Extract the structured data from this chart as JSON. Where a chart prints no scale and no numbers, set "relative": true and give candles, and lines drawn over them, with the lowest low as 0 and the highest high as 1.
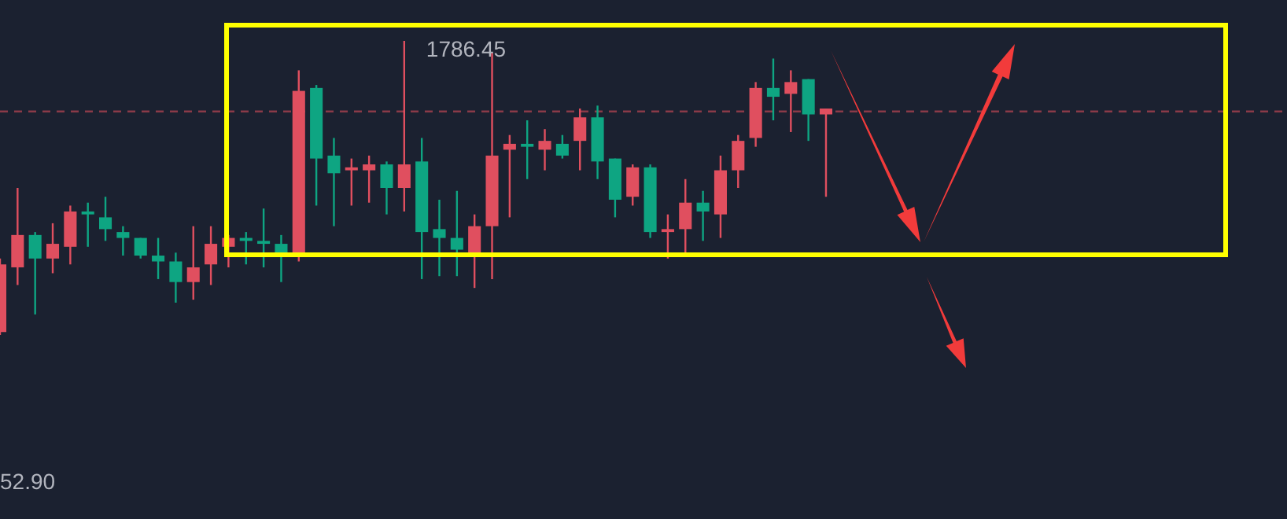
{
  "chart_data": {
    "type": "candlestick",
    "relative": true,
    "categories": [
      null,
      null,
      null,
      null,
      null,
      null,
      null,
      null,
      null,
      null,
      null,
      null,
      null,
      null,
      null,
      null,
      null,
      null,
      null,
      null,
      null,
      null,
      null,
      null,
      null,
      null,
      null,
      null,
      null,
      null,
      null,
      null,
      null,
      null,
      null,
      null,
      null,
      null,
      null,
      null,
      null,
      null,
      null,
      null,
      null,
      null,
      null,
      null,
      null,
      null,
      null,
      null,
      null,
      null,
      null,
      null,
      null,
      null,
      null,
      null,
      null,
      null,
      null,
      null,
      null,
      null,
      null,
      null,
      null,
      null,
      null,
      null,
      null,
      null
    ],
    "ohlc": [
      [
        0.24,
        0.26,
        0,
        0.01
      ],
      [
        0.34,
        0.5,
        0.17,
        0.23
      ],
      [
        0.26,
        0.35,
        0.07,
        0.34
      ],
      [
        0.31,
        0.38,
        0.21,
        0.26
      ],
      [
        0.42,
        0.44,
        0.24,
        0.3
      ],
      [
        0.41,
        0.45,
        0.3,
        0.42
      ],
      [
        0.36,
        0.47,
        0.32,
        0.4
      ],
      [
        0.33,
        0.37,
        0.27,
        0.35
      ],
      [
        0.27,
        0.33,
        0.26,
        0.33
      ],
      [
        0.25,
        0.33,
        0.19,
        0.27
      ],
      [
        0.18,
        0.28,
        0.11,
        0.25
      ],
      [
        0.23,
        0.37,
        0.12,
        0.18
      ],
      [
        0.31,
        0.37,
        0.17,
        0.24
      ],
      [
        0.33,
        0.34,
        0.23,
        0.3
      ],
      [
        0.32,
        0.35,
        0.24,
        0.33
      ],
      [
        0.31,
        0.43,
        0.23,
        0.32
      ],
      [
        0.28,
        0.34,
        0.18,
        0.31
      ],
      [
        0.83,
        0.9,
        0.25,
        0.28
      ],
      [
        0.6,
        0.85,
        0.44,
        0.84
      ],
      [
        0.55,
        0.67,
        0.37,
        0.61
      ],
      [
        0.57,
        0.6,
        0.44,
        0.56
      ],
      [
        0.58,
        0.61,
        0.45,
        0.56
      ],
      [
        0.5,
        0.59,
        0.41,
        0.58
      ],
      [
        0.58,
        1,
        0.42,
        0.5
      ],
      [
        0.35,
        0.67,
        0.19,
        0.59
      ],
      [
        0.33,
        0.46,
        0.2,
        0.36
      ],
      [
        0.29,
        0.49,
        0.2,
        0.33
      ],
      [
        0.37,
        0.41,
        0.16,
        0.28
      ],
      [
        0.61,
        0.96,
        0.19,
        0.37
      ],
      [
        0.65,
        0.68,
        0.4,
        0.63
      ],
      [
        0.64,
        0.73,
        0.53,
        0.65
      ],
      [
        0.66,
        0.7,
        0.56,
        0.63
      ],
      [
        0.61,
        0.68,
        0.6,
        0.65
      ],
      [
        0.74,
        0.77,
        0.56,
        0.66
      ],
      [
        0.59,
        0.78,
        0.53,
        0.74
      ],
      [
        0.46,
        0.6,
        0.4,
        0.6
      ],
      [
        0.57,
        0.58,
        0.44,
        0.47
      ],
      [
        0.35,
        0.58,
        0.33,
        0.57
      ],
      [
        0.36,
        0.41,
        0.26,
        0.35
      ],
      [
        0.45,
        0.53,
        0.28,
        0.36
      ],
      [
        0.42,
        0.49,
        0.32,
        0.45
      ],
      [
        0.56,
        0.61,
        0.33,
        0.41
      ],
      [
        0.66,
        0.68,
        0.5,
        0.56
      ],
      [
        0.84,
        0.86,
        0.64,
        0.67
      ],
      [
        0.81,
        0.94,
        0.73,
        0.84
      ],
      [
        0.86,
        0.9,
        0.69,
        0.82
      ],
      [
        0.75,
        0.87,
        0.66,
        0.87
      ],
      [
        0.77,
        0.77,
        0.47,
        0.75
      ],
      null,
      null,
      null,
      null,
      null,
      null,
      null,
      null,
      null,
      null,
      null,
      null,
      null,
      null,
      null,
      null,
      null,
      null,
      null,
      null,
      null,
      null,
      null,
      null,
      null,
      null
    ],
    "colors": [
      "#e04f5f",
      "#e04f5f",
      "#0ea582",
      "#e04f5f",
      "#e04f5f",
      "#0ea582",
      "#0ea582",
      "#0ea582",
      "#0ea582",
      "#0ea582",
      "#0ea582",
      "#e04f5f",
      "#e04f5f",
      "#e04f5f",
      "#0ea582",
      "#0ea582",
      "#0ea582",
      "#e04f5f",
      "#0ea582",
      "#0ea582",
      "#e04f5f",
      "#e04f5f",
      "#0ea582",
      "#e04f5f",
      "#0ea582",
      "#0ea582",
      "#0ea582",
      "#e04f5f",
      "#e04f5f",
      "#e04f5f",
      "#0ea582",
      "#e04f5f",
      "#0ea582",
      "#e04f5f",
      "#0ea582",
      "#0ea582",
      "#e04f5f",
      "#0ea582",
      "#e04f5f",
      "#e04f5f",
      "#0ea582",
      "#e04f5f",
      "#e04f5f",
      "#e04f5f",
      "#0ea582",
      "#e04f5f",
      "#0ea582",
      "#e04f5f",
      null,
      null,
      null,
      null,
      null,
      null,
      null,
      null,
      null,
      null,
      null,
      null,
      null,
      null,
      null,
      null,
      null,
      null,
      null,
      null,
      null,
      null,
      null,
      null,
      null,
      null
    ],
    "ref_lines": [
      {
        "axis": "y",
        "value": 0.76,
        "color": "#8a3a48",
        "line_style": "dashed"
      }
    ],
    "annotations": [
      "1786.45",
      "52.90"
    ]
  }
}
